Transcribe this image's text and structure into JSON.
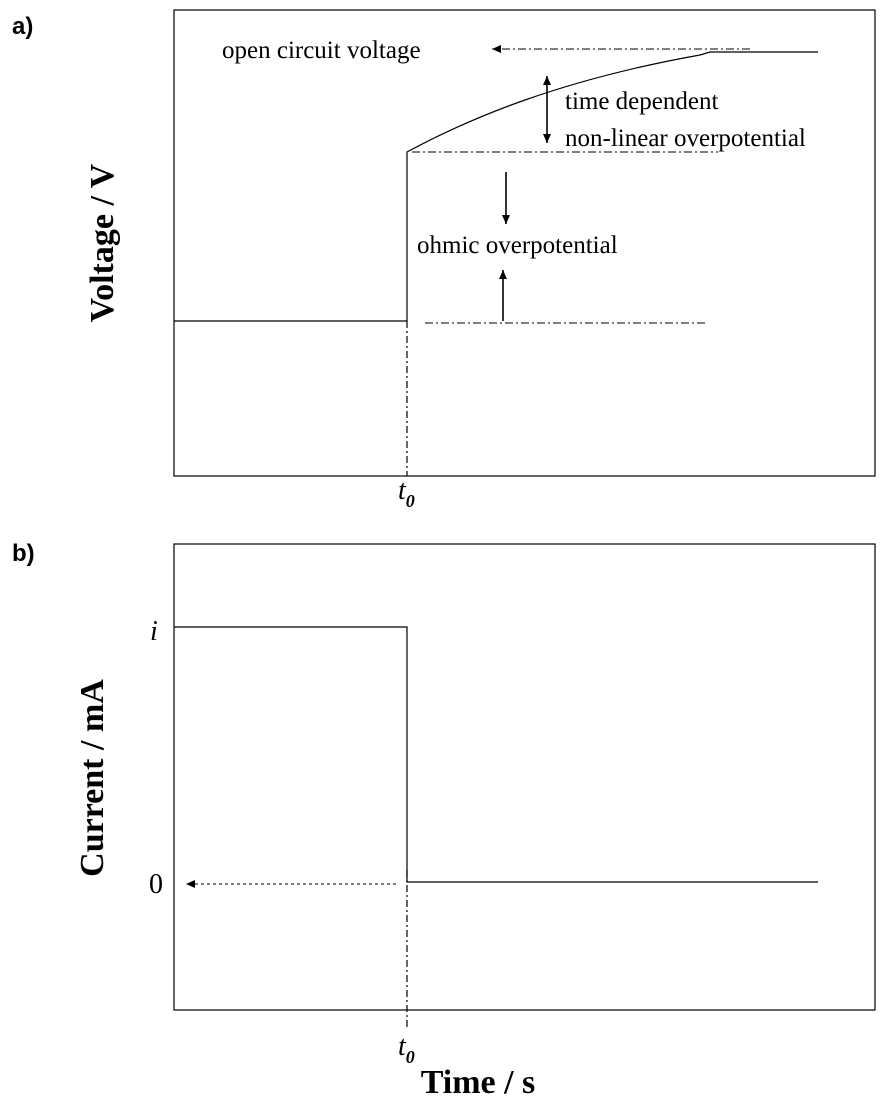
{
  "panel_a": {
    "label": "a)",
    "ylabel": "Voltage / V",
    "annotations": {
      "ocv": "open circuit voltage",
      "tdo_line1": "time dependent",
      "tdo_line2": "non-linear overpotential",
      "ohmic": "ohmic overpotential"
    },
    "x_tick": {
      "main": "t",
      "sub": "0"
    }
  },
  "panel_b": {
    "label": "b)",
    "ylabel": "Current / mA",
    "y_ticks": {
      "top": "i",
      "zero": "0"
    },
    "x_tick": {
      "main": "t",
      "sub": "0"
    },
    "xlabel": "Time / s"
  }
}
